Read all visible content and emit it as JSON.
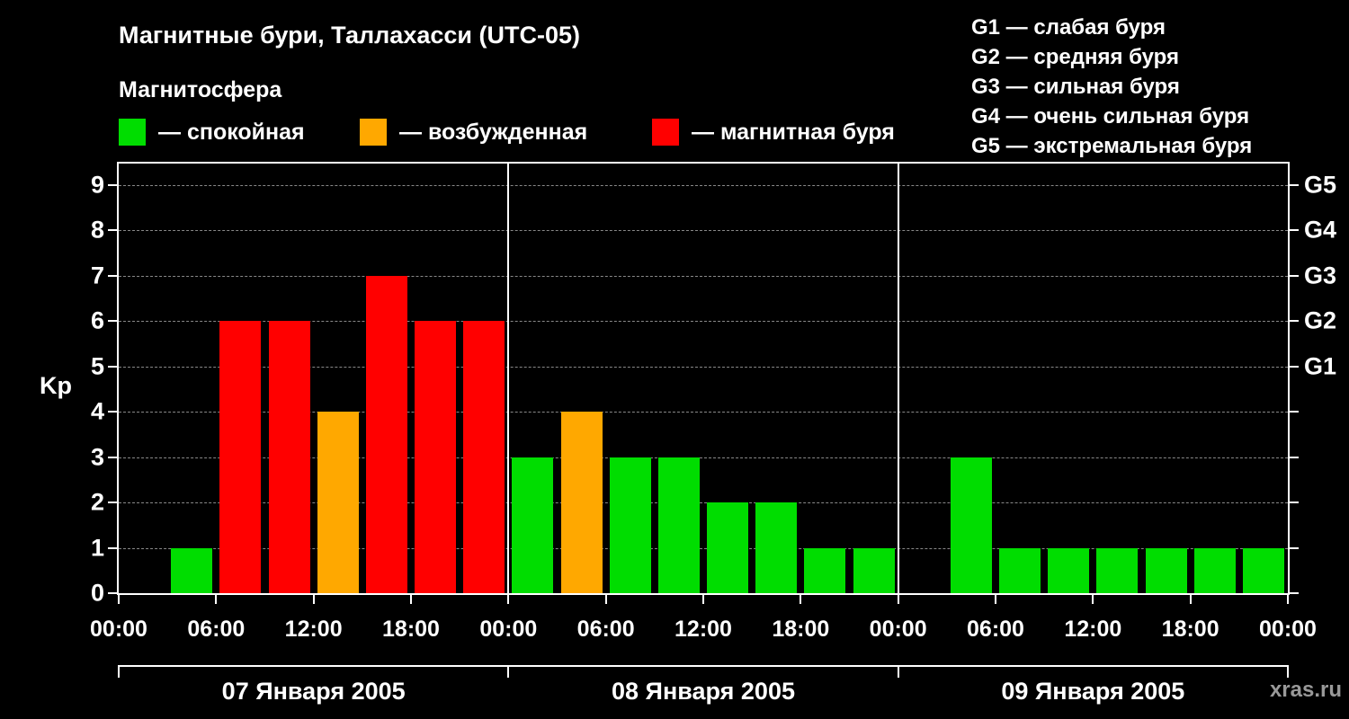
{
  "title": "Магнитные бури, Таллахасси (UTC-05)",
  "subtitle": "Магнитосфера",
  "legend": [
    {
      "name": "quiet",
      "label": "— спокойная",
      "color": "#00dd00"
    },
    {
      "name": "active",
      "label": "— возбужденная",
      "color": "#ffa800"
    },
    {
      "name": "storm",
      "label": "— магнитная буря",
      "color": "#ff0000"
    }
  ],
  "g_legend": [
    "G1 — слабая буря",
    "G2 — средняя буря",
    "G3 — сильная буря",
    "G4 — очень сильная буря",
    "G5 — экстремальная буря"
  ],
  "watermark": "xras.ru",
  "chart_data": {
    "type": "bar",
    "title": "Магнитные бури, Таллахасси (UTC-05)",
    "ylabel": "Kp",
    "ylim": [
      0,
      9
    ],
    "yticks": [
      0,
      1,
      2,
      3,
      4,
      5,
      6,
      7,
      8,
      9
    ],
    "grid": "horizontal dashed",
    "interval_hours": 3,
    "x_tick_labels": [
      "00:00",
      "06:00",
      "12:00",
      "18:00",
      "00:00",
      "06:00",
      "12:00",
      "18:00",
      "00:00",
      "06:00",
      "12:00",
      "18:00",
      "00:00"
    ],
    "right_axis_labels": [
      {
        "kp": 5,
        "label": "G1"
      },
      {
        "kp": 6,
        "label": "G2"
      },
      {
        "kp": 7,
        "label": "G3"
      },
      {
        "kp": 8,
        "label": "G4"
      },
      {
        "kp": 9,
        "label": "G5"
      }
    ],
    "color_rules": {
      "quiet_max": 3,
      "active_max": 4,
      "quiet": "#00dd00",
      "active": "#ffa800",
      "storm": "#ff0000"
    },
    "days": [
      {
        "label": "07 Января 2005",
        "values": [
          0,
          1,
          6,
          6,
          4,
          7,
          6,
          6
        ]
      },
      {
        "label": "08 Января 2005",
        "values": [
          3,
          4,
          3,
          3,
          2,
          2,
          1,
          1
        ]
      },
      {
        "label": "09 Января 2005",
        "values": [
          0,
          3,
          1,
          1,
          1,
          1,
          1,
          1
        ]
      }
    ]
  }
}
